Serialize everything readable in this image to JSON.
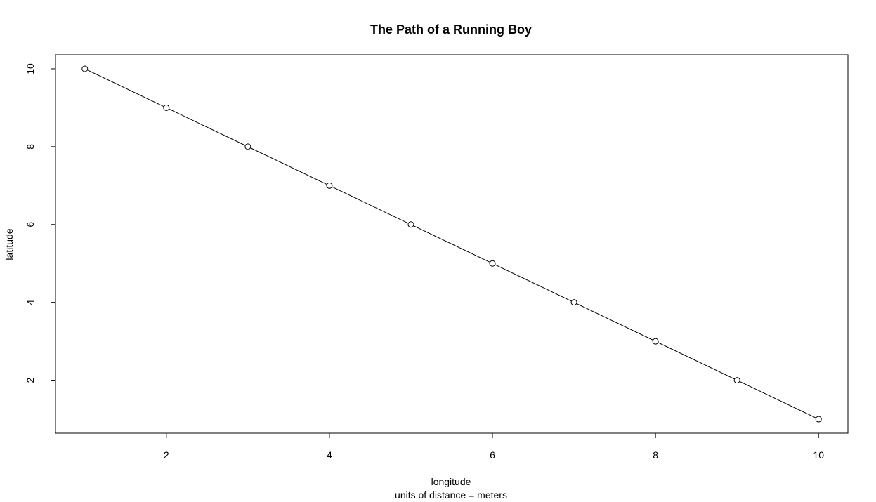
{
  "chart_data": {
    "type": "line",
    "title": "The Path of a Running Boy",
    "xlabel": "longitude",
    "xlabel_sub": "units of distance = meters",
    "ylabel": "latitude",
    "x": [
      1,
      2,
      3,
      4,
      5,
      6,
      7,
      8,
      9,
      10
    ],
    "series": [
      {
        "values": [
          10,
          9,
          8,
          7,
          6,
          5,
          4,
          3,
          2,
          1
        ]
      }
    ],
    "xlim": [
      0.64,
      10.36
    ],
    "ylim": [
      0.64,
      10.36
    ],
    "x_ticks": [
      "2",
      "4",
      "6",
      "8",
      "10"
    ],
    "y_ticks": [
      "2",
      "4",
      "6",
      "8",
      "10"
    ],
    "markers": "open-circle",
    "line_color": "#000000",
    "grid": false,
    "legend": "none"
  }
}
